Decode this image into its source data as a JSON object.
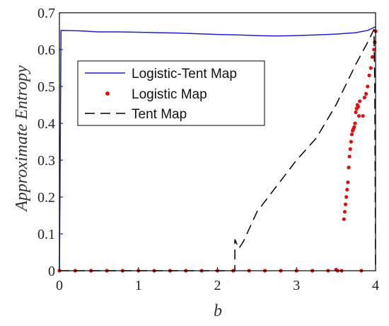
{
  "chart_data": {
    "type": "line",
    "xlabel": "b",
    "ylabel": "Approximate Entropy",
    "xlim": [
      0,
      4
    ],
    "ylim": [
      0,
      0.7
    ],
    "x_ticks": [
      "0",
      "1",
      "2",
      "3",
      "4"
    ],
    "y_ticks": [
      "0",
      "0.1",
      "0.2",
      "0.3",
      "0.4",
      "0.5",
      "0.6",
      "0.7"
    ],
    "legend_position": "upper-left",
    "series": [
      {
        "name": "Logistic-Tent Map",
        "style": "solid",
        "color": "#1f1fd0",
        "points": [
          [
            0,
            0
          ],
          [
            0.01,
            0.3
          ],
          [
            0.02,
            0.652
          ],
          [
            0.25,
            0.651
          ],
          [
            0.5,
            0.648
          ],
          [
            0.75,
            0.648
          ],
          [
            1.0,
            0.647
          ],
          [
            1.25,
            0.646
          ],
          [
            1.5,
            0.645
          ],
          [
            1.75,
            0.643
          ],
          [
            2.0,
            0.641
          ],
          [
            2.25,
            0.64
          ],
          [
            2.5,
            0.638
          ],
          [
            2.75,
            0.637
          ],
          [
            3.0,
            0.638
          ],
          [
            3.25,
            0.64
          ],
          [
            3.5,
            0.642
          ],
          [
            3.75,
            0.646
          ],
          [
            3.9,
            0.652
          ],
          [
            4.0,
            0.662
          ]
        ]
      },
      {
        "name": "Logistic Map",
        "style": "dots",
        "color": "#e01010",
        "points": [
          [
            0.0,
            0.0
          ],
          [
            0.2,
            0.0
          ],
          [
            0.4,
            0.0
          ],
          [
            0.6,
            0.0
          ],
          [
            0.8,
            0.0
          ],
          [
            1.0,
            0.0
          ],
          [
            1.2,
            0.0
          ],
          [
            1.4,
            0.0
          ],
          [
            1.6,
            0.0
          ],
          [
            1.8,
            0.0
          ],
          [
            2.0,
            0.0
          ],
          [
            2.2,
            0.0
          ],
          [
            2.4,
            0.0
          ],
          [
            2.6,
            0.0
          ],
          [
            2.8,
            0.0
          ],
          [
            3.0,
            0.0
          ],
          [
            3.2,
            0.0
          ],
          [
            3.4,
            0.0
          ],
          [
            3.5,
            0.003
          ],
          [
            3.52,
            0.0
          ],
          [
            3.57,
            0.0
          ],
          [
            3.6,
            0.14
          ],
          [
            3.61,
            0.16
          ],
          [
            3.62,
            0.18
          ],
          [
            3.63,
            0.2
          ],
          [
            3.64,
            0.22
          ],
          [
            3.65,
            0.24
          ],
          [
            3.66,
            0.28
          ],
          [
            3.67,
            0.31
          ],
          [
            3.68,
            0.33
          ],
          [
            3.69,
            0.35
          ],
          [
            3.7,
            0.37
          ],
          [
            3.71,
            0.38
          ],
          [
            3.72,
            0.385
          ],
          [
            3.73,
            0.39
          ],
          [
            3.74,
            0.4
          ],
          [
            3.75,
            0.43
          ],
          [
            3.76,
            0.44
          ],
          [
            3.77,
            0.45
          ],
          [
            3.78,
            0.445
          ],
          [
            3.79,
            0.42
          ],
          [
            3.8,
            0.46
          ],
          [
            3.82,
            0.0
          ],
          [
            3.84,
            0.42
          ],
          [
            3.86,
            0.47
          ],
          [
            3.88,
            0.48
          ],
          [
            3.9,
            0.5
          ],
          [
            3.92,
            0.53
          ],
          [
            3.94,
            0.55
          ],
          [
            3.96,
            0.58
          ],
          [
            3.98,
            0.6
          ],
          [
            3.99,
            0.62
          ],
          [
            4.0,
            0.65
          ]
        ]
      },
      {
        "name": "Tent Map",
        "style": "dashed",
        "color": "#000000",
        "points": [
          [
            0.0,
            0.0
          ],
          [
            1.0,
            0.0
          ],
          [
            2.0,
            0.0
          ],
          [
            2.22,
            0.0
          ],
          [
            2.22,
            0.085
          ],
          [
            2.27,
            0.06
          ],
          [
            2.33,
            0.08
          ],
          [
            2.5,
            0.16
          ],
          [
            2.75,
            0.23
          ],
          [
            3.0,
            0.3
          ],
          [
            3.25,
            0.36
          ],
          [
            3.5,
            0.45
          ],
          [
            3.75,
            0.56
          ],
          [
            3.9,
            0.62
          ],
          [
            3.98,
            0.655
          ],
          [
            3.99,
            0.5
          ],
          [
            4.0,
            0.0
          ]
        ]
      }
    ]
  }
}
